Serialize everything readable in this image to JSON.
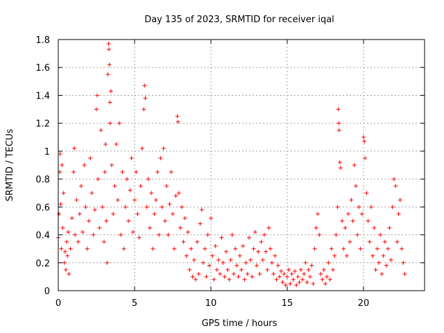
{
  "chart_data": {
    "type": "scatter",
    "title": "Day 135 of 2023, SRMTID for receiver iqal",
    "xlabel": "GPS time / hours",
    "ylabel": "SRMTID / TECUs",
    "xlim": [
      0,
      24
    ],
    "ylim": [
      0,
      1.8
    ],
    "xticks": [
      0,
      5,
      10,
      15,
      20
    ],
    "yticks": [
      0,
      0.2,
      0.4,
      0.6,
      0.8,
      1,
      1.2,
      1.4,
      1.6,
      1.8
    ],
    "xtick_labels": [
      "0",
      "5",
      "10",
      "15",
      "20"
    ],
    "ytick_labels": [
      "0",
      "0.2",
      "0.4",
      "0.6",
      "0.8",
      "1",
      "1.2",
      "1.4",
      "1.6",
      "1.8"
    ],
    "grid": true,
    "marker": "+",
    "series": [
      {
        "name": "SRMTID",
        "color": "#ff0000",
        "points": [
          [
            0.0,
            0.38
          ],
          [
            0.05,
            0.55
          ],
          [
            0.1,
            0.85
          ],
          [
            0.12,
            0.98
          ],
          [
            0.15,
            0.62
          ],
          [
            0.2,
            0.3
          ],
          [
            0.25,
            0.9
          ],
          [
            0.3,
            0.45
          ],
          [
            0.35,
            0.7
          ],
          [
            0.4,
            0.2
          ],
          [
            0.45,
            0.28
          ],
          [
            0.5,
            0.15
          ],
          [
            0.55,
            0.35
          ],
          [
            0.6,
            0.25
          ],
          [
            0.65,
            0.42
          ],
          [
            0.7,
            0.12
          ],
          [
            0.8,
            0.3
          ],
          [
            0.9,
            0.52
          ],
          [
            1.0,
            0.85
          ],
          [
            1.05,
            1.02
          ],
          [
            1.1,
            0.4
          ],
          [
            1.2,
            0.65
          ],
          [
            1.3,
            0.35
          ],
          [
            1.4,
            0.55
          ],
          [
            1.5,
            0.75
          ],
          [
            1.6,
            0.42
          ],
          [
            1.7,
            0.9
          ],
          [
            1.8,
            0.6
          ],
          [
            1.9,
            0.3
          ],
          [
            2.0,
            0.5
          ],
          [
            2.1,
            0.95
          ],
          [
            2.2,
            0.7
          ],
          [
            2.3,
            0.4
          ],
          [
            2.4,
            0.58
          ],
          [
            2.5,
            1.3
          ],
          [
            2.55,
            1.4
          ],
          [
            2.6,
            0.8
          ],
          [
            2.7,
            0.45
          ],
          [
            2.8,
            1.15
          ],
          [
            2.9,
            0.6
          ],
          [
            3.0,
            0.35
          ],
          [
            3.05,
            0.85
          ],
          [
            3.1,
            1.05
          ],
          [
            3.15,
            0.5
          ],
          [
            3.2,
            0.2
          ],
          [
            3.25,
            1.55
          ],
          [
            3.3,
            1.77
          ],
          [
            3.32,
            1.73
          ],
          [
            3.35,
            1.62
          ],
          [
            3.38,
            1.35
          ],
          [
            3.4,
            1.2
          ],
          [
            3.45,
            1.43
          ],
          [
            3.5,
            0.9
          ],
          [
            3.6,
            0.55
          ],
          [
            3.7,
            0.75
          ],
          [
            3.8,
            1.05
          ],
          [
            3.9,
            0.65
          ],
          [
            4.0,
            1.2
          ],
          [
            4.1,
            0.4
          ],
          [
            4.2,
            0.85
          ],
          [
            4.3,
            0.3
          ],
          [
            4.4,
            0.6
          ],
          [
            4.5,
            0.8
          ],
          [
            4.6,
            0.5
          ],
          [
            4.7,
            0.72
          ],
          [
            4.8,
            0.95
          ],
          [
            4.9,
            0.42
          ],
          [
            5.0,
            0.65
          ],
          [
            5.1,
            0.85
          ],
          [
            5.2,
            0.55
          ],
          [
            5.3,
            0.38
          ],
          [
            5.4,
            0.75
          ],
          [
            5.5,
            1.02
          ],
          [
            5.6,
            1.3
          ],
          [
            5.65,
            1.47
          ],
          [
            5.7,
            1.38
          ],
          [
            5.8,
            0.6
          ],
          [
            5.9,
            0.8
          ],
          [
            6.0,
            0.45
          ],
          [
            6.1,
            0.7
          ],
          [
            6.2,
            0.3
          ],
          [
            6.3,
            0.55
          ],
          [
            6.4,
            0.65
          ],
          [
            6.5,
            0.85
          ],
          [
            6.6,
            0.4
          ],
          [
            6.7,
            0.95
          ],
          [
            6.8,
            0.6
          ],
          [
            6.9,
            1.02
          ],
          [
            7.0,
            0.5
          ],
          [
            7.1,
            0.75
          ],
          [
            7.2,
            0.4
          ],
          [
            7.3,
            0.62
          ],
          [
            7.4,
            0.85
          ],
          [
            7.5,
            0.55
          ],
          [
            7.6,
            0.3
          ],
          [
            7.7,
            0.68
          ],
          [
            7.8,
            1.25
          ],
          [
            7.85,
            1.21
          ],
          [
            7.9,
            0.7
          ],
          [
            8.0,
            0.45
          ],
          [
            8.1,
            0.6
          ],
          [
            8.2,
            0.35
          ],
          [
            8.3,
            0.52
          ],
          [
            8.4,
            0.25
          ],
          [
            8.5,
            0.42
          ],
          [
            8.6,
            0.15
          ],
          [
            8.7,
            0.3
          ],
          [
            8.8,
            0.1
          ],
          [
            8.9,
            0.22
          ],
          [
            9.0,
            0.08
          ],
          [
            9.1,
            0.35
          ],
          [
            9.2,
            0.12
          ],
          [
            9.3,
            0.48
          ],
          [
            9.4,
            0.58
          ],
          [
            9.5,
            0.2
          ],
          [
            9.6,
            0.3
          ],
          [
            9.7,
            0.1
          ],
          [
            9.8,
            0.4
          ],
          [
            9.9,
            0.18
          ],
          [
            10.0,
            0.52
          ],
          [
            10.1,
            0.25
          ],
          [
            10.2,
            0.08
          ],
          [
            10.3,
            0.32
          ],
          [
            10.4,
            0.15
          ],
          [
            10.5,
            0.22
          ],
          [
            10.6,
            0.12
          ],
          [
            10.7,
            0.38
          ],
          [
            10.8,
            0.2
          ],
          [
            10.9,
            0.1
          ],
          [
            11.0,
            0.28
          ],
          [
            11.1,
            0.15
          ],
          [
            11.2,
            0.08
          ],
          [
            11.3,
            0.22
          ],
          [
            11.4,
            0.4
          ],
          [
            11.5,
            0.12
          ],
          [
            11.6,
            0.3
          ],
          [
            11.7,
            0.18
          ],
          [
            11.8,
            0.1
          ],
          [
            11.9,
            0.25
          ],
          [
            12.0,
            0.15
          ],
          [
            12.1,
            0.32
          ],
          [
            12.2,
            0.08
          ],
          [
            12.3,
            0.2
          ],
          [
            12.4,
            0.12
          ],
          [
            12.5,
            0.38
          ],
          [
            12.6,
            0.22
          ],
          [
            12.7,
            0.1
          ],
          [
            12.8,
            0.3
          ],
          [
            12.9,
            0.42
          ],
          [
            13.0,
            0.18
          ],
          [
            13.1,
            0.28
          ],
          [
            13.2,
            0.12
          ],
          [
            13.3,
            0.35
          ],
          [
            13.4,
            0.22
          ],
          [
            13.5,
            0.4
          ],
          [
            13.6,
            0.28
          ],
          [
            13.7,
            0.15
          ],
          [
            13.8,
            0.45
          ],
          [
            13.9,
            0.3
          ],
          [
            14.0,
            0.2
          ],
          [
            14.1,
            0.12
          ],
          [
            14.2,
            0.25
          ],
          [
            14.3,
            0.08
          ],
          [
            14.4,
            0.18
          ],
          [
            14.5,
            0.1
          ],
          [
            14.6,
            0.14
          ],
          [
            14.7,
            0.06
          ],
          [
            14.8,
            0.12
          ],
          [
            14.9,
            0.04
          ],
          [
            15.0,
            0.1
          ],
          [
            15.1,
            0.15
          ],
          [
            15.2,
            0.05
          ],
          [
            15.3,
            0.12
          ],
          [
            15.4,
            0.08
          ],
          [
            15.5,
            0.14
          ],
          [
            15.6,
            0.04
          ],
          [
            15.7,
            0.1
          ],
          [
            15.8,
            0.06
          ],
          [
            15.9,
            0.15
          ],
          [
            16.0,
            0.08
          ],
          [
            16.1,
            0.12
          ],
          [
            16.2,
            0.2
          ],
          [
            16.3,
            0.06
          ],
          [
            16.4,
            0.15
          ],
          [
            16.5,
            0.1
          ],
          [
            16.6,
            0.18
          ],
          [
            16.7,
            0.05
          ],
          [
            16.8,
            0.3
          ],
          [
            16.9,
            0.45
          ],
          [
            17.0,
            0.55
          ],
          [
            17.1,
            0.4
          ],
          [
            17.2,
            0.12
          ],
          [
            17.3,
            0.08
          ],
          [
            17.4,
            0.15
          ],
          [
            17.5,
            0.05
          ],
          [
            17.6,
            0.1
          ],
          [
            17.7,
            0.2
          ],
          [
            17.8,
            0.08
          ],
          [
            17.9,
            0.3
          ],
          [
            18.0,
            0.15
          ],
          [
            18.1,
            0.25
          ],
          [
            18.2,
            0.4
          ],
          [
            18.3,
            0.6
          ],
          [
            18.35,
            1.3
          ],
          [
            18.38,
            1.2
          ],
          [
            18.4,
            1.15
          ],
          [
            18.45,
            0.92
          ],
          [
            18.5,
            0.88
          ],
          [
            18.6,
            0.5
          ],
          [
            18.7,
            0.3
          ],
          [
            18.8,
            0.45
          ],
          [
            18.9,
            0.25
          ],
          [
            19.0,
            0.55
          ],
          [
            19.1,
            0.35
          ],
          [
            19.2,
            0.65
          ],
          [
            19.3,
            0.5
          ],
          [
            19.4,
            0.9
          ],
          [
            19.5,
            0.75
          ],
          [
            19.6,
            0.4
          ],
          [
            19.7,
            0.6
          ],
          [
            19.8,
            0.3
          ],
          [
            19.9,
            0.55
          ],
          [
            20.0,
            1.1
          ],
          [
            20.05,
            1.07
          ],
          [
            20.1,
            0.95
          ],
          [
            20.2,
            0.7
          ],
          [
            20.3,
            0.5
          ],
          [
            20.4,
            0.35
          ],
          [
            20.5,
            0.6
          ],
          [
            20.6,
            0.25
          ],
          [
            20.7,
            0.45
          ],
          [
            20.8,
            0.15
          ],
          [
            20.9,
            0.3
          ],
          [
            21.0,
            0.2
          ],
          [
            21.1,
            0.4
          ],
          [
            21.2,
            0.12
          ],
          [
            21.3,
            0.25
          ],
          [
            21.4,
            0.35
          ],
          [
            21.5,
            0.18
          ],
          [
            21.6,
            0.3
          ],
          [
            21.7,
            0.45
          ],
          [
            21.8,
            0.22
          ],
          [
            21.9,
            0.6
          ],
          [
            22.0,
            0.8
          ],
          [
            22.1,
            0.75
          ],
          [
            22.2,
            0.35
          ],
          [
            22.3,
            0.55
          ],
          [
            22.4,
            0.65
          ],
          [
            22.5,
            0.3
          ],
          [
            22.6,
            0.2
          ],
          [
            22.7,
            0.12
          ]
        ]
      }
    ]
  }
}
